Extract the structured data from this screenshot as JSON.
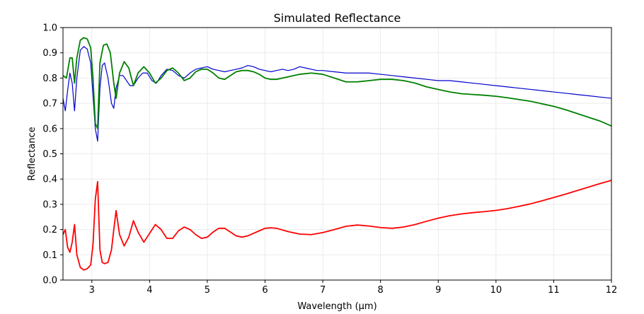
{
  "chart_data": {
    "type": "line",
    "title": "Simulated Reflectance",
    "xlabel": "Wavelength (μm)",
    "ylabel": "Reflectance",
    "xlim": [
      2.5,
      12
    ],
    "ylim": [
      0,
      1
    ],
    "xticks": [
      3,
      4,
      5,
      6,
      7,
      8,
      9,
      10,
      11,
      12
    ],
    "xtick_labels": [
      "3",
      "4",
      "5",
      "6",
      "7",
      "8",
      "9",
      "10",
      "11",
      "12"
    ],
    "yticks": [
      0,
      0.1,
      0.2,
      0.3,
      0.4,
      0.5,
      0.6,
      0.7,
      0.8,
      0.9,
      1.0
    ],
    "ytick_labels": [
      "0.0",
      "0.1",
      "0.2",
      "0.3",
      "0.4",
      "0.5",
      "0.6",
      "0.7",
      "0.8",
      "0.9",
      "1.0"
    ],
    "grid": true,
    "legend": "none",
    "series": [
      {
        "color": "#0000cc",
        "x": [
          2.5,
          2.54,
          2.58,
          2.62,
          2.66,
          2.7,
          2.74,
          2.8,
          2.86,
          2.92,
          2.98,
          3.02,
          3.06,
          3.1,
          3.14,
          3.18,
          3.22,
          3.28,
          3.34,
          3.38,
          3.42,
          3.48,
          3.54,
          3.6,
          3.66,
          3.72,
          3.8,
          3.88,
          3.96,
          4.04,
          4.12,
          4.2,
          4.3,
          4.4,
          4.5,
          4.6,
          4.7,
          4.8,
          4.9,
          5.0,
          5.1,
          5.2,
          5.3,
          5.4,
          5.5,
          5.6,
          5.7,
          5.8,
          5.9,
          6.0,
          6.1,
          6.2,
          6.3,
          6.4,
          6.5,
          6.6,
          6.7,
          6.8,
          6.9,
          7.0,
          7.2,
          7.4,
          7.6,
          7.8,
          8.0,
          8.2,
          8.4,
          8.6,
          8.8,
          9.0,
          9.2,
          9.4,
          9.6,
          9.8,
          10.0,
          10.2,
          10.4,
          10.6,
          10.8,
          11.0,
          11.2,
          11.4,
          11.6,
          11.8,
          12.0
        ],
        "y": [
          0.72,
          0.67,
          0.75,
          0.82,
          0.78,
          0.67,
          0.8,
          0.91,
          0.925,
          0.915,
          0.86,
          0.73,
          0.6,
          0.55,
          0.76,
          0.85,
          0.86,
          0.8,
          0.7,
          0.68,
          0.76,
          0.81,
          0.81,
          0.79,
          0.77,
          0.77,
          0.8,
          0.82,
          0.82,
          0.79,
          0.78,
          0.81,
          0.835,
          0.83,
          0.81,
          0.8,
          0.82,
          0.835,
          0.84,
          0.845,
          0.835,
          0.83,
          0.825,
          0.83,
          0.835,
          0.84,
          0.85,
          0.845,
          0.835,
          0.83,
          0.825,
          0.83,
          0.835,
          0.83,
          0.835,
          0.845,
          0.84,
          0.835,
          0.83,
          0.83,
          0.825,
          0.82,
          0.82,
          0.82,
          0.815,
          0.81,
          0.805,
          0.8,
          0.795,
          0.79,
          0.79,
          0.785,
          0.78,
          0.775,
          0.77,
          0.765,
          0.76,
          0.755,
          0.75,
          0.745,
          0.74,
          0.735,
          0.73,
          0.725,
          0.72
        ]
      },
      {
        "color": "#008000",
        "x": [
          2.5,
          2.56,
          2.62,
          2.66,
          2.7,
          2.74,
          2.8,
          2.86,
          2.92,
          2.98,
          3.02,
          3.06,
          3.1,
          3.14,
          3.2,
          3.26,
          3.32,
          3.38,
          3.42,
          3.48,
          3.56,
          3.64,
          3.72,
          3.8,
          3.9,
          4.0,
          4.1,
          4.2,
          4.3,
          4.4,
          4.5,
          4.6,
          4.7,
          4.8,
          4.9,
          5.0,
          5.1,
          5.2,
          5.3,
          5.4,
          5.5,
          5.6,
          5.7,
          5.8,
          5.9,
          6.0,
          6.1,
          6.2,
          6.4,
          6.6,
          6.8,
          7.0,
          7.2,
          7.4,
          7.6,
          7.8,
          8.0,
          8.2,
          8.4,
          8.6,
          8.8,
          9.0,
          9.2,
          9.4,
          9.6,
          9.8,
          10.0,
          10.2,
          10.4,
          10.6,
          10.8,
          11.0,
          11.2,
          11.4,
          11.6,
          11.8,
          12.0
        ],
        "y": [
          0.81,
          0.8,
          0.88,
          0.88,
          0.78,
          0.88,
          0.95,
          0.96,
          0.955,
          0.92,
          0.8,
          0.62,
          0.6,
          0.86,
          0.93,
          0.935,
          0.9,
          0.78,
          0.72,
          0.82,
          0.865,
          0.84,
          0.77,
          0.82,
          0.845,
          0.82,
          0.78,
          0.8,
          0.83,
          0.84,
          0.82,
          0.79,
          0.8,
          0.825,
          0.835,
          0.835,
          0.82,
          0.8,
          0.795,
          0.81,
          0.825,
          0.83,
          0.83,
          0.825,
          0.815,
          0.8,
          0.795,
          0.795,
          0.805,
          0.815,
          0.82,
          0.815,
          0.8,
          0.785,
          0.785,
          0.79,
          0.795,
          0.795,
          0.79,
          0.78,
          0.765,
          0.755,
          0.745,
          0.738,
          0.735,
          0.732,
          0.728,
          0.722,
          0.715,
          0.708,
          0.698,
          0.688,
          0.675,
          0.66,
          0.645,
          0.63,
          0.61
        ]
      },
      {
        "color": "#ff0000",
        "x": [
          2.5,
          2.54,
          2.58,
          2.62,
          2.66,
          2.7,
          2.74,
          2.8,
          2.86,
          2.92,
          2.98,
          3.02,
          3.06,
          3.1,
          3.14,
          3.18,
          3.22,
          3.28,
          3.34,
          3.38,
          3.42,
          3.48,
          3.56,
          3.64,
          3.72,
          3.8,
          3.9,
          4.0,
          4.1,
          4.2,
          4.3,
          4.4,
          4.5,
          4.6,
          4.7,
          4.8,
          4.9,
          5.0,
          5.1,
          5.2,
          5.3,
          5.4,
          5.5,
          5.6,
          5.7,
          5.8,
          5.9,
          6.0,
          6.1,
          6.2,
          6.4,
          6.6,
          6.8,
          7.0,
          7.2,
          7.4,
          7.6,
          7.8,
          8.0,
          8.2,
          8.4,
          8.6,
          8.8,
          9.0,
          9.2,
          9.4,
          9.6,
          9.8,
          10.0,
          10.2,
          10.4,
          10.6,
          10.8,
          11.0,
          11.2,
          11.4,
          11.6,
          11.8,
          12.0
        ],
        "y": [
          0.18,
          0.2,
          0.13,
          0.11,
          0.15,
          0.22,
          0.1,
          0.05,
          0.04,
          0.045,
          0.06,
          0.14,
          0.32,
          0.39,
          0.12,
          0.07,
          0.065,
          0.07,
          0.12,
          0.2,
          0.275,
          0.18,
          0.135,
          0.17,
          0.235,
          0.19,
          0.15,
          0.185,
          0.22,
          0.2,
          0.165,
          0.165,
          0.195,
          0.21,
          0.2,
          0.18,
          0.165,
          0.17,
          0.19,
          0.205,
          0.205,
          0.19,
          0.175,
          0.17,
          0.175,
          0.185,
          0.195,
          0.205,
          0.207,
          0.205,
          0.192,
          0.182,
          0.18,
          0.188,
          0.2,
          0.213,
          0.218,
          0.214,
          0.208,
          0.205,
          0.21,
          0.22,
          0.233,
          0.245,
          0.255,
          0.262,
          0.267,
          0.271,
          0.276,
          0.283,
          0.292,
          0.302,
          0.314,
          0.327,
          0.34,
          0.354,
          0.368,
          0.382,
          0.395
        ]
      }
    ]
  }
}
